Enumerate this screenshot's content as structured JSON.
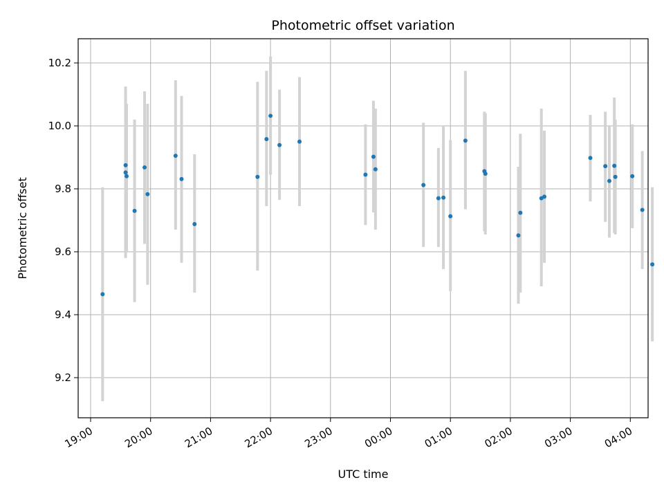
{
  "chart_data": {
    "type": "scatter",
    "title": "Photometric offset variation",
    "xlabel": "UTC time",
    "ylabel": "Photometric offset",
    "grid": true,
    "x_ticks": [
      {
        "t": 0,
        "label": "19:00"
      },
      {
        "t": 60,
        "label": "20:00"
      },
      {
        "t": 120,
        "label": "21:00"
      },
      {
        "t": 180,
        "label": "22:00"
      },
      {
        "t": 240,
        "label": "23:00"
      },
      {
        "t": 300,
        "label": "00:00"
      },
      {
        "t": 360,
        "label": "01:00"
      },
      {
        "t": 420,
        "label": "02:00"
      },
      {
        "t": 480,
        "label": "03:00"
      },
      {
        "t": 540,
        "label": "04:00"
      }
    ],
    "y_ticks": [
      9.2,
      9.4,
      9.6,
      9.8,
      10.0,
      10.2
    ],
    "ylim": [
      9.07,
      10.27
    ],
    "colors": {
      "point": "#1f77b4",
      "errorbar": "#d3d3d3",
      "grid": "#b0b0b0"
    },
    "points": [
      {
        "t": 12,
        "y": 9.465,
        "lo": 9.125,
        "hi": 9.805
      },
      {
        "t": 35,
        "y": 9.875,
        "lo": 9.58,
        "hi": 10.125
      },
      {
        "t": 35,
        "y": 9.852,
        "lo": 9.6,
        "hi": 10.1
      },
      {
        "t": 36,
        "y": 9.84,
        "lo": 9.6,
        "hi": 10.07
      },
      {
        "t": 44,
        "y": 9.73,
        "lo": 9.44,
        "hi": 10.02
      },
      {
        "t": 54,
        "y": 9.868,
        "lo": 9.625,
        "hi": 10.11
      },
      {
        "t": 57,
        "y": 9.783,
        "lo": 9.495,
        "hi": 10.07
      },
      {
        "t": 85,
        "y": 9.905,
        "lo": 9.67,
        "hi": 10.145
      },
      {
        "t": 91,
        "y": 9.831,
        "lo": 9.565,
        "hi": 10.095
      },
      {
        "t": 104,
        "y": 9.688,
        "lo": 9.47,
        "hi": 9.91
      },
      {
        "t": 167,
        "y": 9.838,
        "lo": 9.54,
        "hi": 10.14
      },
      {
        "t": 176,
        "y": 9.958,
        "lo": 9.745,
        "hi": 10.175
      },
      {
        "t": 180,
        "y": 10.032,
        "lo": 9.845,
        "hi": 10.22
      },
      {
        "t": 189,
        "y": 9.939,
        "lo": 9.765,
        "hi": 10.115
      },
      {
        "t": 209,
        "y": 9.95,
        "lo": 9.745,
        "hi": 10.155
      },
      {
        "t": 275,
        "y": 9.845,
        "lo": 9.685,
        "hi": 10.005
      },
      {
        "t": 283,
        "y": 9.902,
        "lo": 9.725,
        "hi": 10.08
      },
      {
        "t": 285,
        "y": 9.862,
        "lo": 9.67,
        "hi": 10.055
      },
      {
        "t": 333,
        "y": 9.812,
        "lo": 9.615,
        "hi": 10.01
      },
      {
        "t": 348,
        "y": 9.77,
        "lo": 9.615,
        "hi": 9.93
      },
      {
        "t": 353,
        "y": 9.772,
        "lo": 9.545,
        "hi": 10.0
      },
      {
        "t": 360,
        "y": 9.713,
        "lo": 9.475,
        "hi": 9.955
      },
      {
        "t": 375,
        "y": 9.953,
        "lo": 9.735,
        "hi": 10.175
      },
      {
        "t": 394,
        "y": 9.856,
        "lo": 9.665,
        "hi": 10.045
      },
      {
        "t": 395,
        "y": 9.848,
        "lo": 9.655,
        "hi": 10.04
      },
      {
        "t": 428,
        "y": 9.652,
        "lo": 9.435,
        "hi": 9.87
      },
      {
        "t": 430,
        "y": 9.724,
        "lo": 9.47,
        "hi": 9.975
      },
      {
        "t": 451,
        "y": 9.77,
        "lo": 9.49,
        "hi": 10.055
      },
      {
        "t": 454,
        "y": 9.775,
        "lo": 9.565,
        "hi": 9.985
      },
      {
        "t": 500,
        "y": 9.898,
        "lo": 9.76,
        "hi": 10.035
      },
      {
        "t": 515,
        "y": 9.872,
        "lo": 9.695,
        "hi": 10.045
      },
      {
        "t": 519,
        "y": 9.825,
        "lo": 9.645,
        "hi": 10.0
      },
      {
        "t": 524,
        "y": 9.873,
        "lo": 9.66,
        "hi": 10.09
      },
      {
        "t": 525,
        "y": 9.838,
        "lo": 9.655,
        "hi": 10.02
      },
      {
        "t": 542,
        "y": 9.84,
        "lo": 9.675,
        "hi": 10.005
      },
      {
        "t": 552,
        "y": 9.733,
        "lo": 9.545,
        "hi": 9.92
      },
      {
        "t": 562,
        "y": 9.56,
        "lo": 9.315,
        "hi": 9.805
      }
    ]
  }
}
